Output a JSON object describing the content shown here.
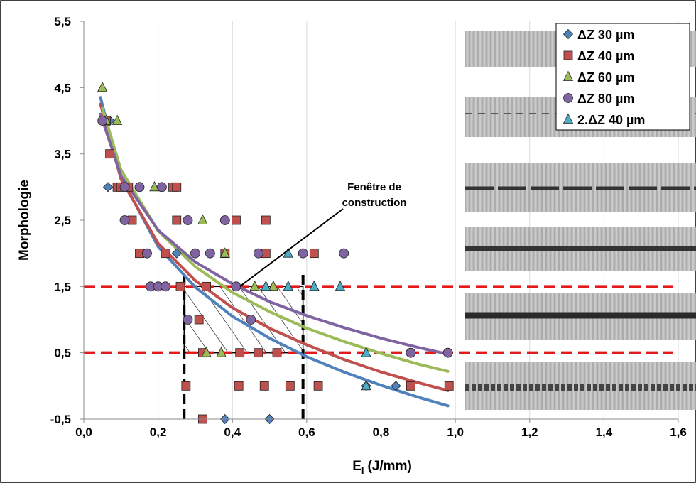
{
  "chart_data": {
    "type": "scatter",
    "x_label": {
      "main": "E",
      "sub": "l",
      "rest": "(J/mm)"
    },
    "y_label": "Morphologie",
    "xlim": [
      0,
      1.6
    ],
    "ylim": [
      -0.5,
      5.5
    ],
    "xticks": [
      {
        "value": 0,
        "label": "0,0"
      },
      {
        "value": 0.2,
        "label": "0,2"
      },
      {
        "value": 0.4,
        "label": "0,4"
      },
      {
        "value": 0.6,
        "label": "0,6"
      },
      {
        "value": 0.8,
        "label": "0,8"
      },
      {
        "value": 1.0,
        "label": "1,0"
      },
      {
        "value": 1.2,
        "label": "1,2"
      },
      {
        "value": 1.4,
        "label": "1,4"
      },
      {
        "value": 1.6,
        "label": "1,6"
      }
    ],
    "yticks": [
      {
        "value": 5.5,
        "label": "5,5"
      },
      {
        "value": 4.5,
        "label": "4,5"
      },
      {
        "value": 3.5,
        "label": "3,5"
      },
      {
        "value": 2.5,
        "label": "2,5"
      },
      {
        "value": 1.5,
        "label": "1,5"
      },
      {
        "value": 0.5,
        "label": "0,5"
      },
      {
        "value": -0.5,
        "label": "-0,5"
      }
    ],
    "grid": true,
    "series": [
      {
        "name": "ΔZ 30 µm",
        "color": "#4f81bd",
        "marker": "diamond",
        "x": [
          0.38,
          0.5,
          0.76,
          0.84,
          0.07,
          0.065,
          0.25
        ],
        "values": [
          -0.5,
          -0.5,
          0,
          0,
          4,
          3,
          2
        ]
      },
      {
        "name": "ΔZ 40 µm",
        "color": "#c0504d",
        "marker": "square",
        "x": [
          0.06,
          0.07,
          0.09,
          0.1,
          0.12,
          0.24,
          0.25,
          0.13,
          0.25,
          0.41,
          0.49,
          0.15,
          0.22,
          0.38,
          0.49,
          0.62,
          0.26,
          0.33,
          0.31,
          0.32,
          0.42,
          0.47,
          0.52,
          0.275,
          0.417,
          0.486,
          0.555,
          0.631,
          0.88,
          0.983,
          0.32
        ],
        "values": [
          4,
          3.5,
          3,
          3,
          3,
          3,
          3,
          2.5,
          2.5,
          2.5,
          2.5,
          2,
          2,
          2,
          2,
          2,
          1.5,
          1.5,
          1,
          0.5,
          0.5,
          0.5,
          0.5,
          0,
          0,
          0,
          0,
          0,
          0,
          0,
          -0.5
        ]
      },
      {
        "name": "ΔZ 60 µm",
        "color": "#9bbb59",
        "marker": "triangle",
        "x": [
          0.05,
          0.06,
          0.09,
          0.19,
          0.32,
          0.38,
          0.46,
          0.51,
          0.62,
          0.33,
          0.37
        ],
        "values": [
          4.5,
          4,
          4,
          3,
          2.5,
          2,
          1.5,
          1.5,
          1.5,
          0.5,
          0.5
        ]
      },
      {
        "name": "ΔZ 80 µm",
        "color": "#8064a2",
        "marker": "circle",
        "x": [
          0.05,
          0.11,
          0.15,
          0.21,
          0.11,
          0.28,
          0.38,
          0.17,
          0.3,
          0.34,
          0.47,
          0.59,
          0.7,
          0.18,
          0.2,
          0.22,
          0.41,
          0.28,
          0.45,
          0.88,
          0.98
        ],
        "values": [
          4,
          3,
          3,
          3,
          2.5,
          2.5,
          2.5,
          2,
          2,
          2,
          2,
          2,
          2,
          1.5,
          1.5,
          1.5,
          1.5,
          1,
          1,
          0.5,
          0.5
        ]
      },
      {
        "name": "2.ΔZ 40 µm",
        "color": "#4bacc6",
        "marker": "triangle",
        "x": [
          0.55,
          0.49,
          0.55,
          0.62,
          0.69,
          0.76,
          0.76
        ],
        "values": [
          2,
          1.5,
          1.5,
          1.5,
          1.5,
          0.5,
          0
        ]
      }
    ],
    "fits": [
      {
        "color": "#4f81bd",
        "x": [
          0.045,
          0.1,
          0.2,
          0.3,
          0.4,
          0.5,
          0.6,
          0.7,
          0.8,
          0.9,
          0.98
        ],
        "values": [
          4.35,
          3.15,
          2.1,
          1.49,
          1.05,
          0.72,
          0.44,
          0.21,
          0.01,
          -0.17,
          -0.3
        ]
      },
      {
        "color": "#c0504d",
        "x": [
          0.045,
          0.1,
          0.2,
          0.3,
          0.4,
          0.5,
          0.6,
          0.7,
          0.8,
          0.9,
          0.98
        ],
        "values": [
          4.25,
          3.12,
          2.15,
          1.59,
          1.18,
          0.87,
          0.62,
          0.4,
          0.21,
          0.05,
          -0.07
        ]
      },
      {
        "color": "#9bbb59",
        "x": [
          0.05,
          0.1,
          0.2,
          0.3,
          0.4,
          0.5,
          0.6,
          0.7,
          0.8,
          0.9,
          0.98
        ],
        "values": [
          4.19,
          3.26,
          2.34,
          1.8,
          1.41,
          1.12,
          0.87,
          0.67,
          0.49,
          0.33,
          0.22
        ]
      },
      {
        "color": "#8064a2",
        "x": [
          0.045,
          0.1,
          0.2,
          0.3,
          0.4,
          0.5,
          0.6,
          0.7,
          0.8,
          0.9,
          0.98
        ],
        "values": [
          4.1,
          3.17,
          2.35,
          1.87,
          1.54,
          1.27,
          1.06,
          0.88,
          0.72,
          0.58,
          0.48
        ]
      }
    ],
    "hlines": [
      1.5,
      0.5
    ],
    "hline_color": "#e31a1c",
    "window": {
      "x": [
        0.27,
        0.59
      ],
      "y": [
        0.5,
        1.5
      ]
    },
    "annotation": {
      "lines": [
        "Fenêtre de",
        "construction"
      ],
      "arrow_to": [
        0.42,
        1.5
      ]
    }
  }
}
